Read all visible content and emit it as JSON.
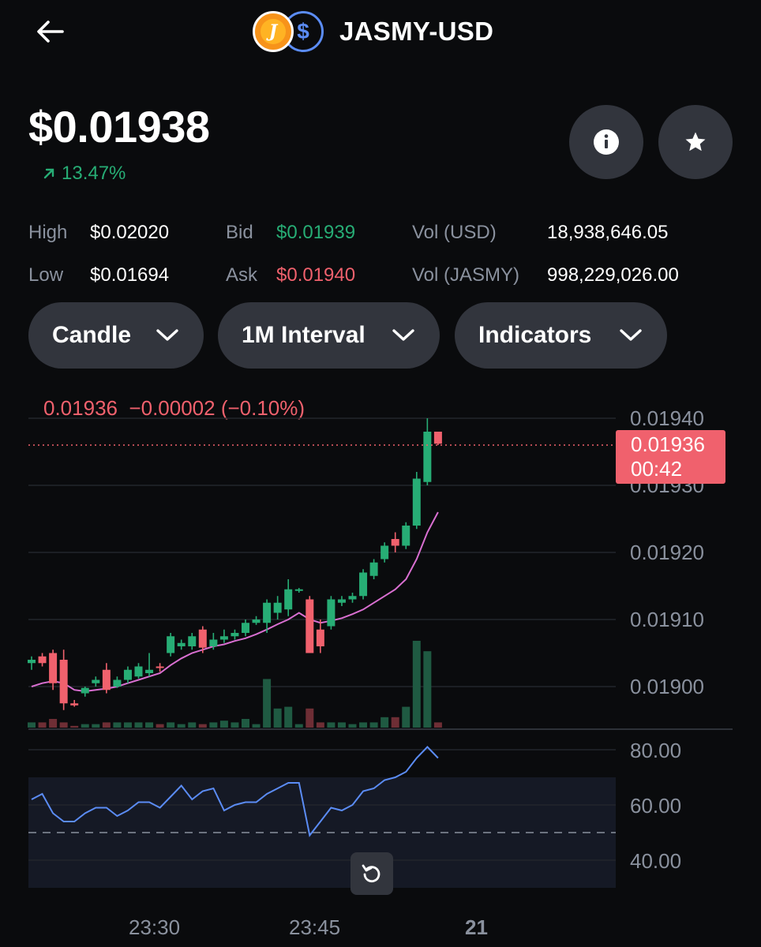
{
  "header": {
    "back_icon": "arrow-left-icon",
    "pair": "JASMY-USD",
    "base_icon_glyph": "J",
    "quote_icon_glyph": "$"
  },
  "price": {
    "value": "$0.01938",
    "change": "13.47%",
    "change_icon": "arrow-up-right-icon"
  },
  "actions": {
    "info_icon": "info-icon",
    "star_icon": "star-icon"
  },
  "stats": {
    "high_label": "High",
    "high_value": "$0.02020",
    "low_label": "Low",
    "low_value": "$0.01694",
    "bid_label": "Bid",
    "bid_value": "$0.01939",
    "ask_label": "Ask",
    "ask_value": "$0.01940",
    "vol_usd_label": "Vol (USD)",
    "vol_usd_value": "18,938,646.05",
    "vol_base_label": "Vol (JASMY)",
    "vol_base_value": "998,229,026.00"
  },
  "controls": {
    "chart_type": "Candle",
    "interval": "1M Interval",
    "indicators": "Indicators"
  },
  "chart": {
    "ohlc_readout": "0.01936  −0.00002 (−0.10%)",
    "current_price": "0.01936",
    "countdown": "00:42",
    "reset_icon": "rotate-ccw-icon"
  },
  "colors": {
    "up": "#27ad75",
    "down": "#f0616d",
    "ma": "#d96fd1",
    "rsi": "#5b8cf5",
    "button_bg": "#32353d"
  },
  "chart_data": {
    "type": "candlestick",
    "x_ticks": [
      "23:30",
      "23:45",
      "21"
    ],
    "y_ticks": [
      "0.01940",
      "0.01930",
      "0.01920",
      "0.01910",
      "0.01900"
    ],
    "rsi_ticks": [
      "80.00",
      "60.00",
      "40.00"
    ],
    "ylim": [
      0.0189,
      0.0194
    ],
    "rsi_lim": [
      30,
      80
    ],
    "rsi_band": [
      50,
      70
    ],
    "candles": [
      {
        "o": 0.019035,
        "h": 0.019045,
        "l": 0.019025,
        "c": 0.01904,
        "v": 1.5
      },
      {
        "o": 0.019045,
        "h": 0.01905,
        "l": 0.01903,
        "c": 0.019035,
        "v": 1.5
      },
      {
        "o": 0.01905,
        "h": 0.019055,
        "l": 0.018995,
        "c": 0.019005,
        "v": 2.5
      },
      {
        "o": 0.01904,
        "h": 0.019055,
        "l": 0.018965,
        "c": 0.018975,
        "v": 1.5
      },
      {
        "o": 0.018975,
        "h": 0.01898,
        "l": 0.01897,
        "c": 0.018972,
        "v": 0.5
      },
      {
        "o": 0.01899,
        "h": 0.019,
        "l": 0.018985,
        "c": 0.018998,
        "v": 1.0
      },
      {
        "o": 0.019005,
        "h": 0.019015,
        "l": 0.019,
        "c": 0.01901,
        "v": 1.0
      },
      {
        "o": 0.019025,
        "h": 0.019035,
        "l": 0.01899,
        "c": 0.018995,
        "v": 1.5
      },
      {
        "o": 0.019,
        "h": 0.019015,
        "l": 0.018998,
        "c": 0.01901,
        "v": 1.5
      },
      {
        "o": 0.01901,
        "h": 0.01903,
        "l": 0.019005,
        "c": 0.019025,
        "v": 1.5
      },
      {
        "o": 0.019015,
        "h": 0.019035,
        "l": 0.019012,
        "c": 0.01903,
        "v": 1.5
      },
      {
        "o": 0.01902,
        "h": 0.01905,
        "l": 0.019015,
        "c": 0.019025,
        "v": 1.5
      },
      {
        "o": 0.01903,
        "h": 0.019035,
        "l": 0.019022,
        "c": 0.019028,
        "v": 1.0
      },
      {
        "o": 0.01905,
        "h": 0.01908,
        "l": 0.019045,
        "c": 0.019075,
        "v": 1.5
      },
      {
        "o": 0.01906,
        "h": 0.01907,
        "l": 0.019055,
        "c": 0.019065,
        "v": 1.0
      },
      {
        "o": 0.01906,
        "h": 0.01908,
        "l": 0.019055,
        "c": 0.019075,
        "v": 1.5
      },
      {
        "o": 0.019085,
        "h": 0.01909,
        "l": 0.01905,
        "c": 0.019058,
        "v": 1.0
      },
      {
        "o": 0.01906,
        "h": 0.01908,
        "l": 0.019055,
        "c": 0.01907,
        "v": 1.5
      },
      {
        "o": 0.01907,
        "h": 0.019085,
        "l": 0.019065,
        "c": 0.019075,
        "v": 2.0
      },
      {
        "o": 0.019075,
        "h": 0.019085,
        "l": 0.01907,
        "c": 0.01908,
        "v": 1.5
      },
      {
        "o": 0.01908,
        "h": 0.0191,
        "l": 0.019075,
        "c": 0.019095,
        "v": 2.5
      },
      {
        "o": 0.019095,
        "h": 0.019105,
        "l": 0.019092,
        "c": 0.0191,
        "v": 1.0
      },
      {
        "o": 0.019095,
        "h": 0.01913,
        "l": 0.01908,
        "c": 0.019125,
        "v": 14.0
      },
      {
        "o": 0.01911,
        "h": 0.019135,
        "l": 0.0191,
        "c": 0.019125,
        "v": 5.5
      },
      {
        "o": 0.019115,
        "h": 0.01916,
        "l": 0.019105,
        "c": 0.019145,
        "v": 6.0
      },
      {
        "o": 0.019143,
        "h": 0.019147,
        "l": 0.01914,
        "c": 0.019145,
        "v": 1.0
      },
      {
        "o": 0.01913,
        "h": 0.019135,
        "l": 0.01905,
        "c": 0.01905,
        "v": 5.5
      },
      {
        "o": 0.019085,
        "h": 0.0191,
        "l": 0.01905,
        "c": 0.01906,
        "v": 1.5
      },
      {
        "o": 0.01909,
        "h": 0.019135,
        "l": 0.019085,
        "c": 0.01913,
        "v": 1.5
      },
      {
        "o": 0.019125,
        "h": 0.019135,
        "l": 0.01912,
        "c": 0.01913,
        "v": 1.5
      },
      {
        "o": 0.01913,
        "h": 0.01914,
        "l": 0.019125,
        "c": 0.019135,
        "v": 1.0
      },
      {
        "o": 0.019135,
        "h": 0.019175,
        "l": 0.01913,
        "c": 0.01917,
        "v": 1.5
      },
      {
        "o": 0.019165,
        "h": 0.01919,
        "l": 0.01916,
        "c": 0.019185,
        "v": 1.5
      },
      {
        "o": 0.01919,
        "h": 0.019215,
        "l": 0.019185,
        "c": 0.01921,
        "v": 3.0
      },
      {
        "o": 0.01922,
        "h": 0.01923,
        "l": 0.0192,
        "c": 0.01921,
        "v": 3.0
      },
      {
        "o": 0.01921,
        "h": 0.019245,
        "l": 0.019205,
        "c": 0.01924,
        "v": 6.0
      },
      {
        "o": 0.01924,
        "h": 0.01932,
        "l": 0.019235,
        "c": 0.01931,
        "v": 25.0
      },
      {
        "o": 0.019305,
        "h": 0.0194,
        "l": 0.0193,
        "c": 0.01938,
        "v": 22.0
      },
      {
        "o": 0.01938,
        "h": 0.01938,
        "l": 0.01936,
        "c": 0.019362,
        "v": 1.5
      }
    ],
    "ma": [
      0.019,
      0.019005,
      0.019008,
      0.019005,
      0.018995,
      0.018993,
      0.018995,
      0.018997,
      0.019,
      0.019005,
      0.01901,
      0.019015,
      0.01902,
      0.019032,
      0.019042,
      0.01905,
      0.019055,
      0.01906,
      0.019063,
      0.019068,
      0.019072,
      0.019078,
      0.019085,
      0.019093,
      0.0191,
      0.01911,
      0.0191,
      0.019095,
      0.019098,
      0.019102,
      0.019108,
      0.019115,
      0.019125,
      0.019135,
      0.019145,
      0.01916,
      0.01919,
      0.01923,
      0.01926
    ],
    "rsi": [
      62,
      64,
      57,
      54,
      54,
      57,
      59,
      59,
      56,
      58,
      61,
      61,
      59,
      63,
      67,
      62,
      65,
      66,
      58,
      60,
      61,
      61,
      64,
      66,
      68,
      68,
      49,
      54,
      59,
      58,
      60,
      65,
      66,
      69,
      70,
      72,
      77,
      81,
      77
    ]
  }
}
